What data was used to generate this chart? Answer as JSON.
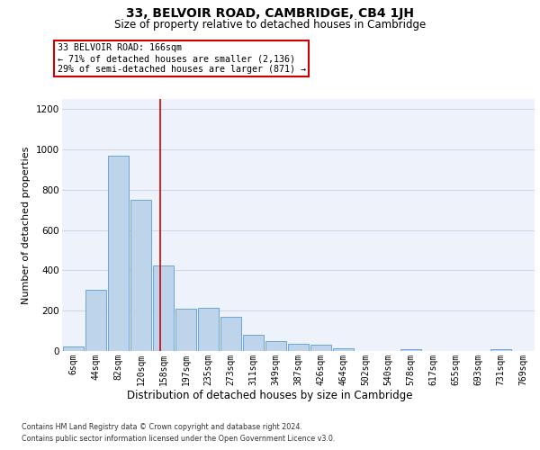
{
  "title1": "33, BELVOIR ROAD, CAMBRIDGE, CB4 1JH",
  "title2": "Size of property relative to detached houses in Cambridge",
  "xlabel": "Distribution of detached houses by size in Cambridge",
  "ylabel": "Number of detached properties",
  "categories": [
    "6sqm",
    "44sqm",
    "82sqm",
    "120sqm",
    "158sqm",
    "197sqm",
    "235sqm",
    "273sqm",
    "311sqm",
    "349sqm",
    "387sqm",
    "426sqm",
    "464sqm",
    "502sqm",
    "540sqm",
    "578sqm",
    "617sqm",
    "655sqm",
    "693sqm",
    "731sqm",
    "769sqm"
  ],
  "values": [
    22,
    305,
    970,
    748,
    425,
    212,
    213,
    168,
    80,
    50,
    35,
    30,
    14,
    0,
    0,
    10,
    0,
    0,
    0,
    8,
    0
  ],
  "bar_color": "#bdd4eb",
  "bar_edge_color": "#5b9bd5",
  "vline_x": 3.85,
  "vline_color": "#cc0000",
  "annotation_lines": [
    "33 BELVOIR ROAD: 166sqm",
    "← 71% of detached houses are smaller (2,136)",
    "29% of semi-detached houses are larger (871) →"
  ],
  "annotation_box_edgecolor": "#cc0000",
  "ylim_max": 1250,
  "background_color": "#eef2fb",
  "grid_color": "#c8d0e8",
  "footnote1": "Contains HM Land Registry data © Crown copyright and database right 2024.",
  "footnote2": "Contains public sector information licensed under the Open Government Licence v3.0.",
  "title1_fontsize": 10,
  "title2_fontsize": 8.5,
  "ylabel_fontsize": 8,
  "xlabel_fontsize": 8.5,
  "tick_fontsize": 7,
  "annot_fontsize": 7.2,
  "footnote_fontsize": 5.8
}
